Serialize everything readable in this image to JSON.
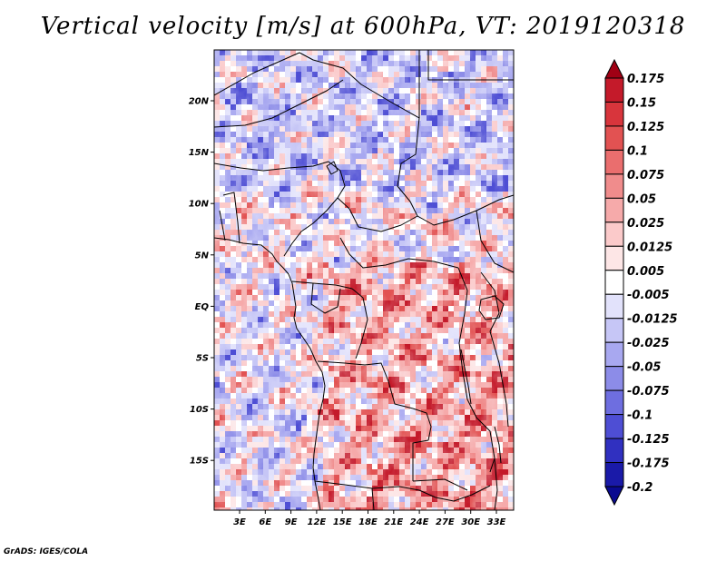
{
  "title": "Vertical velocity [m/s] at 600hPa, VT: 2019120318",
  "credit": "GrADS: IGES/COLA",
  "map": {
    "lat_ticks": [
      "20N",
      "15N",
      "10N",
      "5N",
      "EQ",
      "5S",
      "10S",
      "15S"
    ],
    "lon_ticks": [
      "3E",
      "6E",
      "9E",
      "12E",
      "15E",
      "18E",
      "21E",
      "24E",
      "27E",
      "30E",
      "33E"
    ]
  },
  "colorbar": {
    "labels": [
      "0.175",
      "0.15",
      "0.125",
      "0.1",
      "0.075",
      "0.05",
      "0.025",
      "0.0125",
      "0.005",
      "-0.005",
      "-0.0125",
      "-0.025",
      "-0.05",
      "-0.075",
      "-0.1",
      "-0.125",
      "-0.175",
      "-0.2"
    ],
    "colors": [
      "#a00014",
      "#c41a2a",
      "#d8353c",
      "#e25252",
      "#ea6e6e",
      "#f08c8c",
      "#f6aaaa",
      "#fbcaca",
      "#fde6e6",
      "#ffffff",
      "#e2e2fb",
      "#c6c6f6",
      "#a8a8f0",
      "#8c8ce8",
      "#6e6ee0",
      "#4e4ed4",
      "#3030c0",
      "#1a1aa8",
      "#0a0a90"
    ]
  },
  "legend": {
    "placement": "right"
  }
}
